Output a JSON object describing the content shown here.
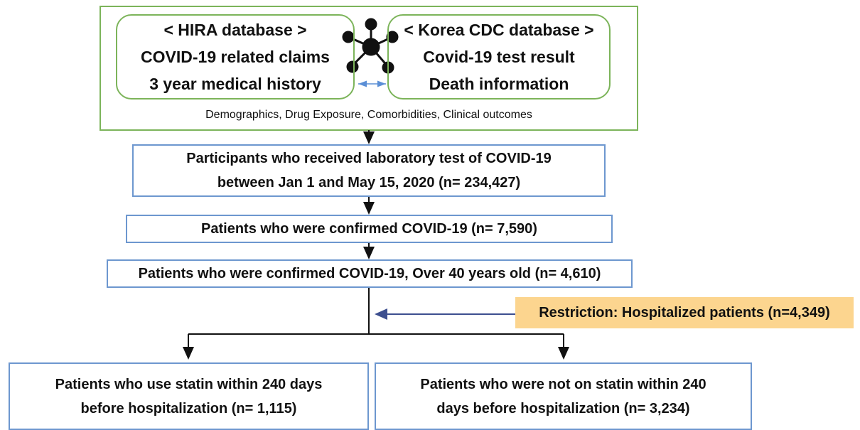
{
  "source_box": {
    "left": {
      "title": "< HIRA database >",
      "lines": [
        "COVID-19 related claims",
        "3 year medical history"
      ]
    },
    "right": {
      "title": "< Korea CDC database >",
      "lines": [
        "Covid-19 test result",
        "Death information"
      ]
    },
    "caption": "Demographics, Drug Exposure, Comorbidities, Clinical outcomes"
  },
  "steps": [
    {
      "lines": [
        "Participants who received laboratory test of COVID-19",
        "between Jan 1 and May 15, 2020 (n= 234,427)"
      ]
    },
    {
      "lines": [
        "Patients who were confirmed COVID-19  (n= 7,590)"
      ]
    },
    {
      "lines": [
        "Patients who were confirmed COVID-19, Over 40 years old  (n= 4,610)"
      ]
    }
  ],
  "restriction": "Restriction: Hospitalized patients (n=4,349)",
  "groups": [
    {
      "lines": [
        "Patients who use statin within 240 days",
        "before hospitalization (n= 1,115)"
      ]
    },
    {
      "lines": [
        "Patients who were not on statin within 240",
        "days before hospitalization (n= 3,234)"
      ]
    }
  ]
}
